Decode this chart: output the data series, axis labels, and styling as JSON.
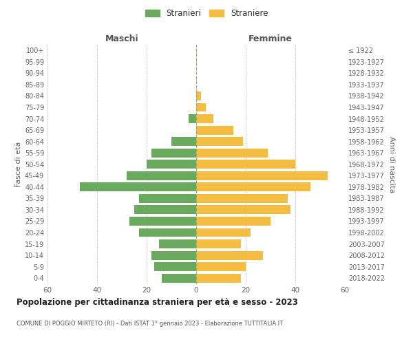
{
  "age_groups": [
    "0-4",
    "5-9",
    "10-14",
    "15-19",
    "20-24",
    "25-29",
    "30-34",
    "35-39",
    "40-44",
    "45-49",
    "50-54",
    "55-59",
    "60-64",
    "65-69",
    "70-74",
    "75-79",
    "80-84",
    "85-89",
    "90-94",
    "95-99",
    "100+"
  ],
  "birth_years": [
    "2018-2022",
    "2013-2017",
    "2008-2012",
    "2003-2007",
    "1998-2002",
    "1993-1997",
    "1988-1992",
    "1983-1987",
    "1978-1982",
    "1973-1977",
    "1968-1972",
    "1963-1967",
    "1958-1962",
    "1953-1957",
    "1948-1952",
    "1943-1947",
    "1938-1942",
    "1933-1937",
    "1928-1932",
    "1923-1927",
    "≤ 1922"
  ],
  "maschi": [
    14,
    17,
    18,
    15,
    23,
    27,
    25,
    23,
    47,
    28,
    20,
    18,
    10,
    0,
    3,
    0,
    0,
    0,
    0,
    0,
    0
  ],
  "femmine": [
    18,
    20,
    27,
    18,
    22,
    30,
    38,
    37,
    46,
    53,
    40,
    29,
    19,
    15,
    7,
    4,
    2,
    0,
    0,
    0,
    0
  ],
  "male_color": "#6aaa5e",
  "female_color": "#f5bc42",
  "background_color": "#ffffff",
  "grid_color": "#cccccc",
  "title": "Popolazione per cittadinanza straniera per età e sesso - 2023",
  "subtitle": "COMUNE DI POGGIO MIRTETO (RI) - Dati ISTAT 1° gennaio 2023 - Elaborazione TUTTITALIA.IT",
  "ylabel_left": "Fasce di età",
  "ylabel_right": "Anni di nascita",
  "xlabel_left": "Maschi",
  "xlabel_right": "Femmine",
  "legend_male": "Stranieri",
  "legend_female": "Straniere",
  "xlim": 60
}
